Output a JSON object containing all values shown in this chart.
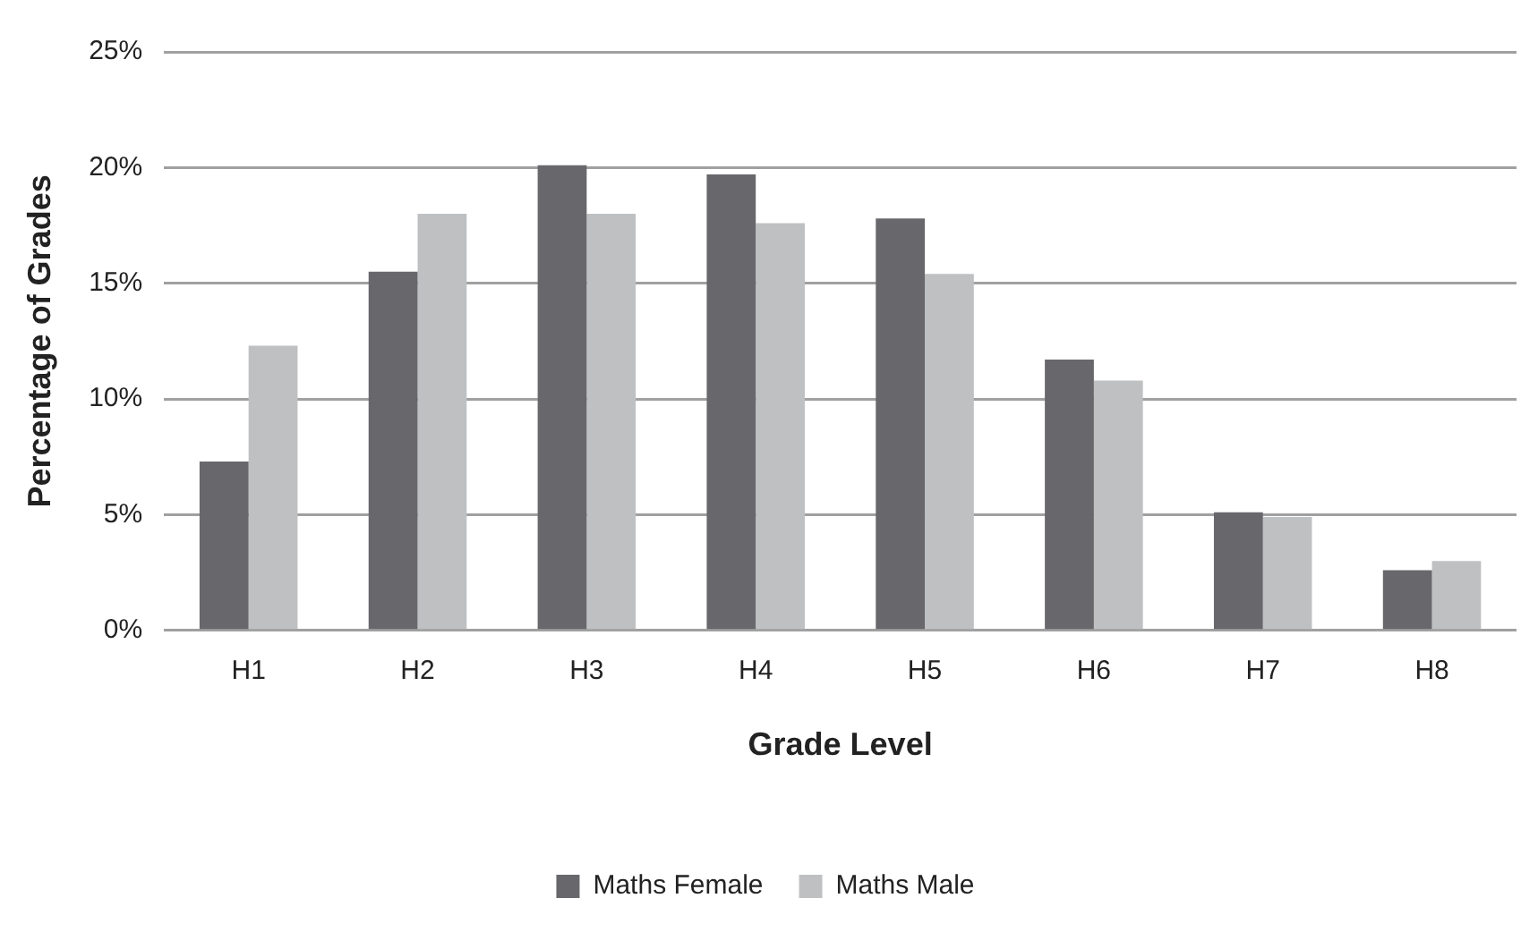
{
  "chart_data": {
    "type": "bar",
    "xlabel": "Grade Level",
    "ylabel": "Percentage of Grades",
    "categories": [
      "H1",
      "H2",
      "H3",
      "H4",
      "H5",
      "H6",
      "H7",
      "H8"
    ],
    "series": [
      {
        "name": "Maths Female",
        "color": "#68686c",
        "values": [
          7.3,
          15.5,
          20.1,
          19.7,
          17.8,
          11.7,
          5.1,
          2.6
        ]
      },
      {
        "name": "Maths Male",
        "color": "#bfc0c2",
        "values": [
          12.3,
          18.0,
          18.0,
          17.6,
          15.4,
          10.8,
          4.9,
          3.0
        ]
      }
    ],
    "ylim": [
      0,
      25
    ],
    "yticks": [
      {
        "value": 0,
        "label": "0%"
      },
      {
        "value": 5,
        "label": "5%"
      },
      {
        "value": 10,
        "label": "10%"
      },
      {
        "value": 15,
        "label": "15%"
      },
      {
        "value": 20,
        "label": "20%"
      },
      {
        "value": 25,
        "label": "25%"
      }
    ],
    "grid": "y",
    "legend": "bottom"
  }
}
